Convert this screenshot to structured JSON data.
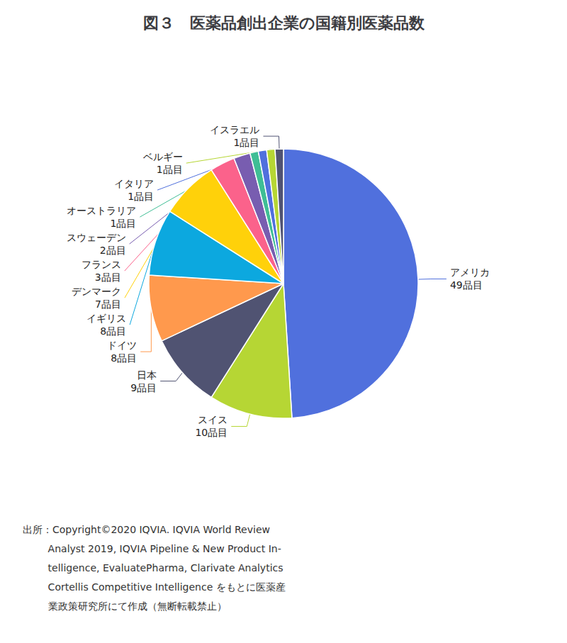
{
  "chart_data": {
    "type": "pie",
    "title": "図３　医薬品創出企業の国籍別医薬品数",
    "categories": [
      "アメリカ",
      "スイス",
      "日本",
      "ドイツ",
      "イギリス",
      "デンマーク",
      "フランス",
      "スウェーデン",
      "オーストラリア",
      "イタリア",
      "ベルギー",
      "イスラエル"
    ],
    "values": [
      49,
      10,
      9,
      8,
      8,
      7,
      3,
      2,
      1,
      1,
      1,
      1
    ],
    "value_labels": [
      "49品目",
      "10品目",
      "9品目",
      "8品目",
      "8品目",
      "7品目",
      "3品目",
      "2品目",
      "1品目",
      "1品目",
      "1品目",
      "1品目"
    ],
    "data_labels": true,
    "annotations": [
      "出所：Copyright©2020 IQVIA. IQVIA World Review",
      "        Analyst 2019, IQVIA Pipeline & New Product In-",
      "        telligence, EvaluatePharma, Clarivate Analytics",
      "        Cortellis Competitive Intelligence をもとに医薬産",
      "        業政策研究所にて作成（無断転載禁止）"
    ]
  }
}
